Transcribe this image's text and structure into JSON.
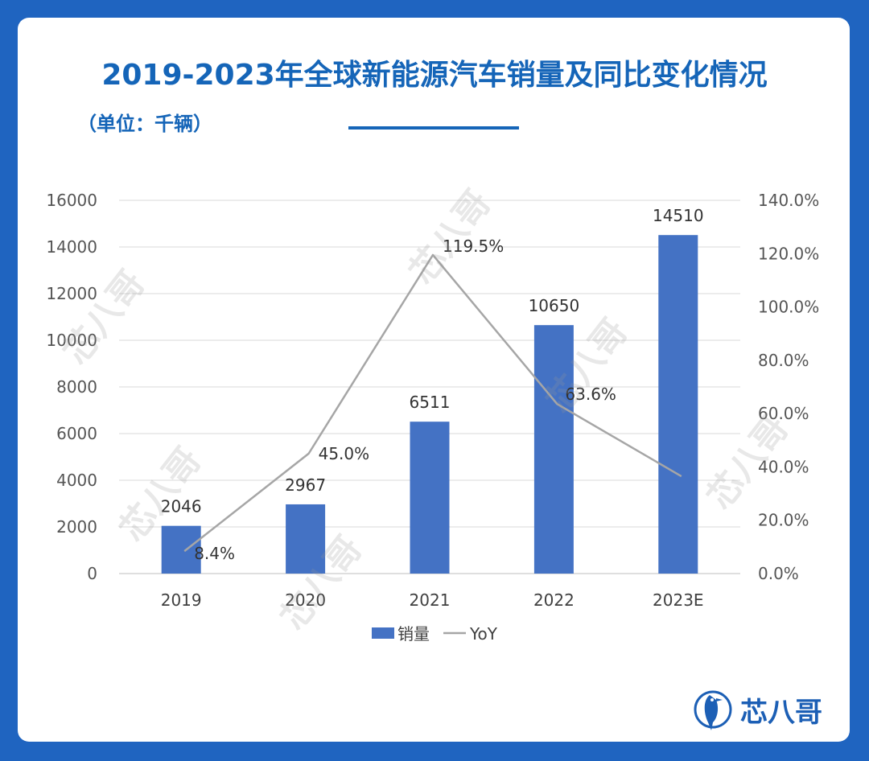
{
  "title": "2019-2023年全球新能源汽车销量及同比变化情况",
  "unit_label": "（单位：千辆）",
  "logo_text": "芯八哥",
  "watermark_text": "芯八哥",
  "colors": {
    "bar": "#4472c4",
    "line": "#a6a6a6",
    "title": "#1565b8",
    "frame": "#1f64c0"
  },
  "chart_data": {
    "type": "bar",
    "categories": [
      "2019",
      "2020",
      "2021",
      "2022",
      "2023E"
    ],
    "series": [
      {
        "name": "销量",
        "type": "bar",
        "axis": "left",
        "values": [
          2046,
          2967,
          6511,
          10650,
          14510
        ],
        "labels": [
          "2046",
          "2967",
          "6511",
          "10650",
          "14510"
        ]
      },
      {
        "name": "YoY",
        "type": "line",
        "axis": "right",
        "values": [
          8.4,
          45.0,
          119.5,
          63.6,
          36.5
        ],
        "labels": [
          "8.4%",
          "45.0%",
          "119.5%",
          "63.6%",
          ""
        ]
      }
    ],
    "y_left": {
      "min": 0,
      "max": 16000,
      "ticks": [
        "0",
        "2000",
        "4000",
        "6000",
        "8000",
        "10000",
        "12000",
        "14000",
        "16000"
      ]
    },
    "y_right": {
      "min": 0,
      "max": 140,
      "ticks": [
        "0.0%",
        "20.0%",
        "40.0%",
        "60.0%",
        "80.0%",
        "100.0%",
        "120.0%",
        "140.0%"
      ]
    },
    "grid": true,
    "legend": "bottom-center"
  }
}
